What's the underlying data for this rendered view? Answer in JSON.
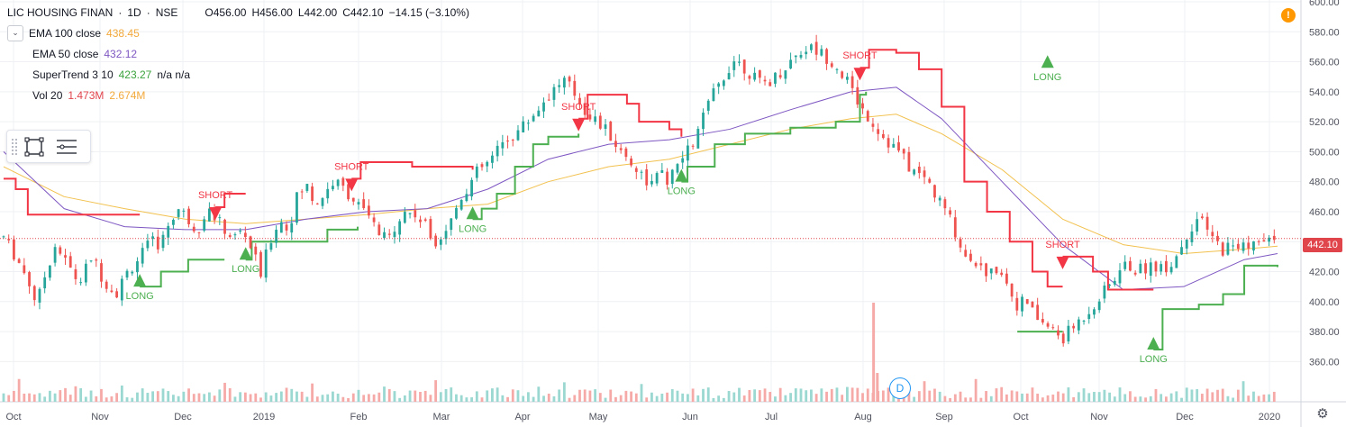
{
  "header": {
    "symbol": "LIC HOUSING FINAN",
    "interval": "1D",
    "exchange": "NSE",
    "sep": "·",
    "open": "O456.00",
    "high": "H456.00",
    "low": "L442.00",
    "close": "C442.10",
    "change": "−14.15 (−3.10%)"
  },
  "indicators": [
    {
      "label": "EMA 100 close",
      "value": "438.45",
      "color": "#f2a93b"
    },
    {
      "label": "EMA 50 close",
      "value": "432.12",
      "color": "#7e57c2"
    },
    {
      "label": "SuperTrend 3 10",
      "value": "423.27",
      "extra": "n/a n/a",
      "color": "#3ca33e"
    },
    {
      "label": "Vol 20",
      "value": "1.473M",
      "extra": "2.674M",
      "color": "#e0454c",
      "extra_color": "#f2a93b"
    }
  ],
  "alert_icon": "!",
  "last_price": "442.10",
  "dividend_marker": "D",
  "colors": {
    "up": "#26a69a",
    "down": "#ef5350",
    "st_up": "#4caf50",
    "st_down": "#f23645",
    "ema100": "#f2c14e",
    "ema50": "#7e57c2",
    "grid": "#eef0f3"
  },
  "chart_data": {
    "type": "candlestick",
    "ylim": [
      350,
      600
    ],
    "y_ticks": [
      "600.00",
      "580.00",
      "560.00",
      "540.00",
      "520.00",
      "500.00",
      "480.00",
      "460.00",
      "440.00",
      "420.00",
      "400.00",
      "380.00",
      "360.00"
    ],
    "y_tick_values": [
      600,
      580,
      560,
      540,
      520,
      500,
      480,
      460,
      440,
      420,
      400,
      380,
      360
    ],
    "x_ticks": [
      "Oct",
      "Nov",
      "Dec",
      "2019",
      "Feb",
      "Mar",
      "Apr",
      "May",
      "Jun",
      "Jul",
      "Aug",
      "Sep",
      "Oct",
      "Nov",
      "Dec",
      "2020"
    ],
    "close_path": [
      [
        0,
        443
      ],
      [
        8,
        430
      ],
      [
        16,
        415
      ],
      [
        22,
        398
      ],
      [
        28,
        420
      ],
      [
        34,
        438
      ],
      [
        42,
        425
      ],
      [
        50,
        412
      ],
      [
        58,
        430
      ],
      [
        66,
        415
      ],
      [
        74,
        405
      ],
      [
        82,
        420
      ],
      [
        90,
        430
      ],
      [
        98,
        440
      ],
      [
        104,
        438
      ],
      [
        110,
        455
      ],
      [
        116,
        462
      ],
      [
        122,
        455
      ],
      [
        128,
        447
      ],
      [
        134,
        462
      ],
      [
        140,
        456
      ],
      [
        146,
        448
      ],
      [
        152,
        442
      ],
      [
        158,
        448
      ],
      [
        164,
        435
      ],
      [
        170,
        418
      ],
      [
        176,
        440
      ],
      [
        182,
        455
      ],
      [
        188,
        448
      ],
      [
        194,
        470
      ],
      [
        200,
        478
      ],
      [
        206,
        465
      ],
      [
        212,
        472
      ],
      [
        218,
        480
      ],
      [
        224,
        476
      ],
      [
        230,
        470
      ],
      [
        236,
        462
      ],
      [
        242,
        455
      ],
      [
        248,
        445
      ],
      [
        254,
        440
      ],
      [
        260,
        455
      ],
      [
        266,
        460
      ],
      [
        272,
        458
      ],
      [
        278,
        452
      ],
      [
        284,
        440
      ],
      [
        290,
        445
      ],
      [
        296,
        455
      ],
      [
        302,
        470
      ],
      [
        308,
        478
      ],
      [
        314,
        488
      ],
      [
        320,
        492
      ],
      [
        326,
        500
      ],
      [
        332,
        508
      ],
      [
        338,
        512
      ],
      [
        346,
        520
      ],
      [
        354,
        530
      ],
      [
        362,
        540
      ],
      [
        370,
        548
      ],
      [
        378,
        538
      ],
      [
        384,
        528
      ],
      [
        392,
        520
      ],
      [
        400,
        512
      ],
      [
        408,
        500
      ],
      [
        416,
        492
      ],
      [
        422,
        484
      ],
      [
        428,
        478
      ],
      [
        434,
        485
      ],
      [
        440,
        480
      ],
      [
        446,
        492
      ],
      [
        452,
        500
      ],
      [
        458,
        510
      ],
      [
        464,
        528
      ],
      [
        470,
        540
      ],
      [
        476,
        550
      ],
      [
        482,
        562
      ],
      [
        488,
        558
      ],
      [
        494,
        552
      ],
      [
        500,
        545
      ],
      [
        508,
        548
      ],
      [
        516,
        556
      ],
      [
        524,
        565
      ],
      [
        532,
        570
      ],
      [
        540,
        566
      ],
      [
        548,
        560
      ],
      [
        556,
        550
      ],
      [
        562,
        538
      ],
      [
        568,
        528
      ],
      [
        574,
        520
      ],
      [
        580,
        512
      ],
      [
        586,
        505
      ],
      [
        592,
        500
      ],
      [
        598,
        490
      ],
      [
        604,
        485
      ],
      [
        610,
        482
      ],
      [
        616,
        470
      ],
      [
        622,
        462
      ],
      [
        628,
        450
      ],
      [
        634,
        432
      ],
      [
        640,
        430
      ],
      [
        646,
        422
      ],
      [
        652,
        418
      ],
      [
        658,
        425
      ],
      [
        664,
        410
      ],
      [
        670,
        398
      ],
      [
        676,
        400
      ],
      [
        682,
        390
      ],
      [
        688,
        385
      ],
      [
        694,
        380
      ],
      [
        700,
        375
      ],
      [
        706,
        382
      ],
      [
        712,
        388
      ],
      [
        718,
        395
      ],
      [
        724,
        402
      ],
      [
        730,
        410
      ],
      [
        736,
        418
      ],
      [
        742,
        425
      ],
      [
        750,
        420
      ],
      [
        758,
        425
      ],
      [
        766,
        422
      ],
      [
        774,
        428
      ],
      [
        782,
        445
      ],
      [
        788,
        455
      ],
      [
        794,
        450
      ],
      [
        800,
        440
      ],
      [
        806,
        435
      ],
      [
        812,
        438
      ],
      [
        818,
        436
      ],
      [
        824,
        440
      ],
      [
        830,
        438
      ],
      [
        836,
        440
      ],
      [
        842,
        442
      ]
    ],
    "ema100_path": [
      [
        0,
        490
      ],
      [
        40,
        470
      ],
      [
        80,
        462
      ],
      [
        120,
        455
      ],
      [
        160,
        452
      ],
      [
        200,
        455
      ],
      [
        240,
        458
      ],
      [
        280,
        462
      ],
      [
        320,
        465
      ],
      [
        360,
        480
      ],
      [
        400,
        490
      ],
      [
        440,
        495
      ],
      [
        480,
        505
      ],
      [
        520,
        515
      ],
      [
        560,
        522
      ],
      [
        590,
        525
      ],
      [
        620,
        512
      ],
      [
        660,
        488
      ],
      [
        700,
        455
      ],
      [
        740,
        438
      ],
      [
        780,
        432
      ],
      [
        820,
        435
      ],
      [
        842,
        437
      ]
    ],
    "ema50_path": [
      [
        0,
        500
      ],
      [
        40,
        462
      ],
      [
        80,
        450
      ],
      [
        120,
        448
      ],
      [
        160,
        448
      ],
      [
        200,
        455
      ],
      [
        240,
        460
      ],
      [
        280,
        462
      ],
      [
        320,
        475
      ],
      [
        360,
        495
      ],
      [
        400,
        505
      ],
      [
        440,
        508
      ],
      [
        480,
        515
      ],
      [
        520,
        528
      ],
      [
        560,
        540
      ],
      [
        590,
        543
      ],
      [
        620,
        522
      ],
      [
        660,
        480
      ],
      [
        700,
        438
      ],
      [
        740,
        408
      ],
      [
        780,
        410
      ],
      [
        820,
        428
      ],
      [
        842,
        432
      ]
    ],
    "supertrend_segments": [
      {
        "trend": "down",
        "points": [
          [
            0,
            482
          ],
          [
            8,
            475
          ],
          [
            16,
            458
          ],
          [
            50,
            458
          ],
          [
            90,
            458
          ]
        ]
      },
      {
        "trend": "up",
        "points": [
          [
            90,
            410
          ],
          [
            98,
            410
          ],
          [
            104,
            420
          ],
          [
            116,
            420
          ],
          [
            122,
            428
          ],
          [
            140,
            428
          ],
          [
            146,
            428
          ]
        ]
      },
      {
        "trend": "down",
        "points": [
          [
            140,
            463
          ],
          [
            146,
            472
          ],
          [
            160,
            472
          ]
        ]
      },
      {
        "trend": "up",
        "points": [
          [
            160,
            428
          ],
          [
            164,
            440
          ],
          [
            170,
            440
          ],
          [
            210,
            440
          ],
          [
            214,
            448
          ],
          [
            230,
            448
          ],
          [
            234,
            450
          ]
        ]
      },
      {
        "trend": "down",
        "points": [
          [
            230,
            482
          ],
          [
            236,
            493
          ],
          [
            270,
            490
          ],
          [
            310,
            488
          ]
        ]
      },
      {
        "trend": "up",
        "points": [
          [
            310,
            455
          ],
          [
            316,
            462
          ],
          [
            326,
            472
          ],
          [
            338,
            490
          ],
          [
            350,
            505
          ],
          [
            360,
            510
          ],
          [
            380,
            512
          ]
        ]
      },
      {
        "trend": "down",
        "points": [
          [
            380,
            522
          ],
          [
            386,
            538
          ],
          [
            400,
            538
          ],
          [
            412,
            532
          ],
          [
            420,
            520
          ],
          [
            440,
            515
          ],
          [
            448,
            510
          ]
        ]
      },
      {
        "trend": "up",
        "points": [
          [
            448,
            480
          ],
          [
            452,
            490
          ],
          [
            470,
            505
          ],
          [
            490,
            512
          ],
          [
            520,
            516
          ],
          [
            550,
            520
          ],
          [
            566,
            538
          ],
          [
            570,
            540
          ]
        ]
      },
      {
        "trend": "down",
        "points": [
          [
            566,
            556
          ],
          [
            572,
            568
          ],
          [
            590,
            566
          ],
          [
            605,
            555
          ],
          [
            620,
            530
          ],
          [
            635,
            480
          ],
          [
            650,
            460
          ],
          [
            665,
            440
          ],
          [
            680,
            420
          ],
          [
            690,
            410
          ],
          [
            700,
            410
          ]
        ]
      },
      {
        "trend": "up",
        "points": [
          [
            670,
            380
          ],
          [
            690,
            380
          ],
          [
            700,
            380
          ]
        ]
      },
      {
        "trend": "down",
        "points": [
          [
            700,
            430
          ],
          [
            720,
            420
          ],
          [
            730,
            408
          ],
          [
            760,
            408
          ]
        ]
      },
      {
        "trend": "up",
        "points": [
          [
            760,
            368
          ],
          [
            766,
            395
          ],
          [
            790,
            398
          ],
          [
            800,
            398
          ],
          [
            806,
            405
          ],
          [
            820,
            424
          ],
          [
            842,
            423
          ]
        ]
      }
    ],
    "signals": [
      {
        "type": "LONG",
        "x": 90
      },
      {
        "type": "SHORT",
        "x": 140
      },
      {
        "type": "LONG",
        "x": 160
      },
      {
        "type": "SHORT",
        "x": 230
      },
      {
        "type": "LONG",
        "x": 310
      },
      {
        "type": "SHORT",
        "x": 380
      },
      {
        "type": "LONG",
        "x": 448
      },
      {
        "type": "SHORT",
        "x": 566
      },
      {
        "type": "LONG",
        "x": 690
      },
      {
        "type": "SHORT",
        "x": 700
      },
      {
        "type": "LONG",
        "x": 760
      }
    ],
    "last_price_value": 442.1
  }
}
